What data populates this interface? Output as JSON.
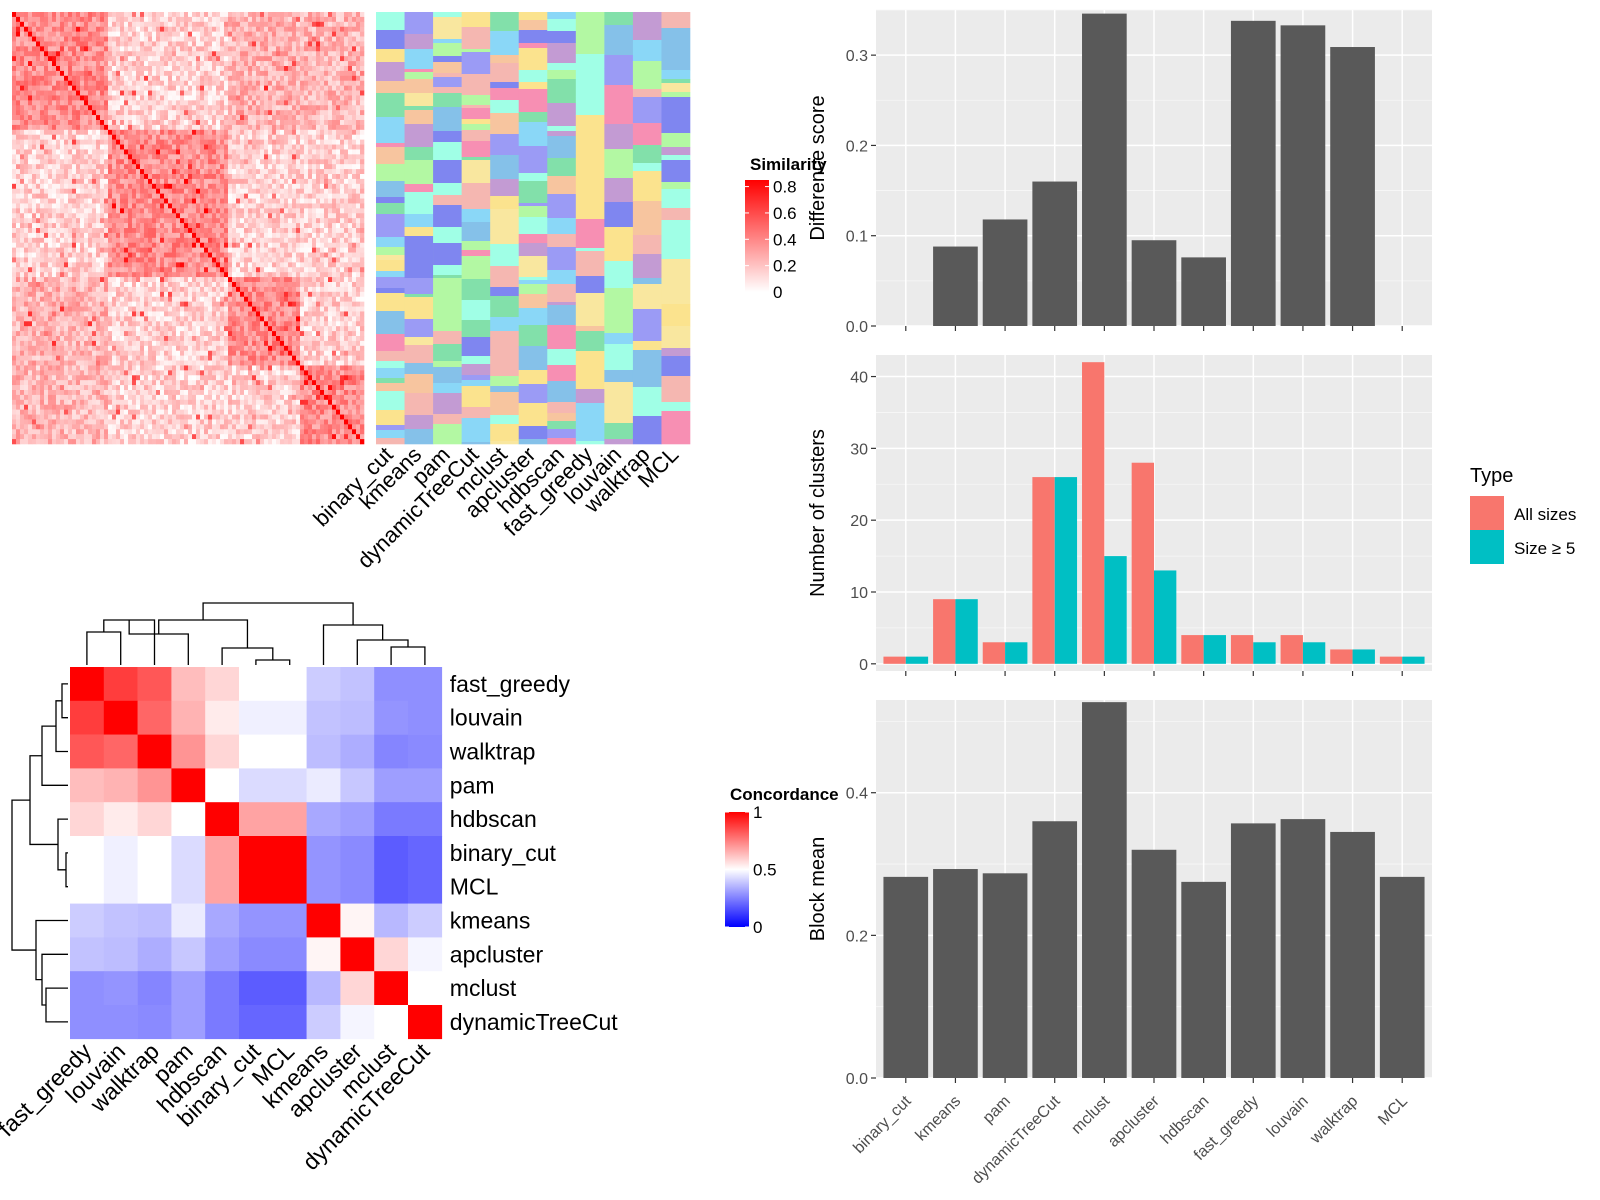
{
  "chart_data": [
    {
      "type": "heatmap",
      "id": "similarity-heatmap",
      "legend": {
        "title": "Similarity",
        "ticks": [
          0,
          0.2,
          0.4,
          0.6,
          0.8
        ],
        "tick_labels": [
          "0",
          "0.2",
          "0.4",
          "0.6",
          "0.8"
        ],
        "low_color": "#ffffff",
        "high_color": "#ff0000"
      },
      "annotation_columns": [
        "binary_cut",
        "kmeans",
        "pam",
        "dynamicTreeCut",
        "mclust",
        "apcluster",
        "hdbscan",
        "fast_greedy",
        "louvain",
        "walktrap",
        "MCL"
      ]
    },
    {
      "type": "heatmap",
      "id": "concordance-heatmap",
      "rows": [
        "fast_greedy",
        "louvain",
        "walktrap",
        "pam",
        "hdbscan",
        "binary_cut",
        "MCL",
        "kmeans",
        "apcluster",
        "mclust",
        "dynamicTreeCut"
      ],
      "columns": [
        "fast_greedy",
        "louvain",
        "walktrap",
        "pam",
        "hdbscan",
        "binary_cut",
        "MCL",
        "kmeans",
        "apcluster",
        "mclust",
        "dynamicTreeCut"
      ],
      "values": [
        [
          1.0,
          0.88,
          0.83,
          0.63,
          0.58,
          0.5,
          0.5,
          0.4,
          0.38,
          0.28,
          0.28
        ],
        [
          0.88,
          1.0,
          0.8,
          0.65,
          0.54,
          0.47,
          0.47,
          0.38,
          0.37,
          0.29,
          0.28
        ],
        [
          0.83,
          0.8,
          1.0,
          0.71,
          0.58,
          0.5,
          0.5,
          0.37,
          0.34,
          0.26,
          0.27
        ],
        [
          0.63,
          0.65,
          0.71,
          1.0,
          0.5,
          0.43,
          0.43,
          0.46,
          0.39,
          0.31,
          0.31
        ],
        [
          0.58,
          0.54,
          0.58,
          0.5,
          1.0,
          0.68,
          0.68,
          0.33,
          0.31,
          0.24,
          0.24
        ],
        [
          0.5,
          0.47,
          0.5,
          0.43,
          0.68,
          1.0,
          1.0,
          0.29,
          0.27,
          0.18,
          0.2
        ],
        [
          0.5,
          0.47,
          0.5,
          0.43,
          0.68,
          1.0,
          1.0,
          0.29,
          0.27,
          0.18,
          0.2
        ],
        [
          0.4,
          0.38,
          0.37,
          0.46,
          0.33,
          0.29,
          0.29,
          1.0,
          0.52,
          0.36,
          0.4
        ],
        [
          0.38,
          0.37,
          0.34,
          0.39,
          0.31,
          0.27,
          0.27,
          0.52,
          1.0,
          0.58,
          0.48
        ],
        [
          0.28,
          0.29,
          0.26,
          0.31,
          0.24,
          0.18,
          0.18,
          0.36,
          0.58,
          1.0,
          0.5
        ],
        [
          0.28,
          0.28,
          0.27,
          0.31,
          0.24,
          0.2,
          0.2,
          0.4,
          0.48,
          0.5,
          1.0
        ]
      ],
      "legend": {
        "title": "Concordance",
        "ticks": [
          0,
          0.5,
          1
        ],
        "tick_labels": [
          "0",
          "0.5",
          "1"
        ],
        "low_color": "#0000ff",
        "mid_color": "#ffffff",
        "high_color": "#ff0000"
      }
    },
    {
      "type": "bar",
      "id": "difference-score",
      "categories": [
        "binary_cut",
        "kmeans",
        "pam",
        "dynamicTreeCut",
        "mclust",
        "apcluster",
        "hdbscan",
        "fast_greedy",
        "louvain",
        "walktrap",
        "MCL"
      ],
      "values": [
        0,
        0.088,
        0.118,
        0.16,
        0.346,
        0.095,
        0.076,
        0.338,
        0.333,
        0.309,
        0
      ],
      "ylabel": "Difference score",
      "ylim": [
        0,
        0.35
      ],
      "yticks": [
        0.0,
        0.1,
        0.2,
        0.3
      ],
      "ytick_labels": [
        "0.0",
        "0.1",
        "0.2",
        "0.3"
      ],
      "grid": true,
      "bar_color": "#595959"
    },
    {
      "type": "bar",
      "id": "number-of-clusters",
      "categories": [
        "binary_cut",
        "kmeans",
        "pam",
        "dynamicTreeCut",
        "mclust",
        "apcluster",
        "hdbscan",
        "fast_greedy",
        "louvain",
        "walktrap",
        "MCL"
      ],
      "series": [
        {
          "name": "All sizes",
          "color": "#f8766d",
          "values": [
            1,
            9,
            3,
            26,
            42,
            28,
            4,
            4,
            4,
            2,
            1
          ]
        },
        {
          "name": "Size ≥ 5",
          "color": "#00bfc4",
          "values": [
            1,
            9,
            3,
            26,
            15,
            13,
            4,
            3,
            3,
            2,
            1
          ]
        }
      ],
      "ylabel": "Number of clusters",
      "ylim": [
        -1,
        43
      ],
      "yticks": [
        0,
        10,
        20,
        30,
        40
      ],
      "ytick_labels": [
        "0",
        "10",
        "20",
        "30",
        "40"
      ],
      "grid": true,
      "legend": {
        "title": "Type",
        "position": "right"
      }
    },
    {
      "type": "bar",
      "id": "block-mean",
      "categories": [
        "binary_cut",
        "kmeans",
        "pam",
        "dynamicTreeCut",
        "mclust",
        "apcluster",
        "hdbscan",
        "fast_greedy",
        "louvain",
        "walktrap",
        "MCL"
      ],
      "values": [
        0.282,
        0.293,
        0.287,
        0.36,
        0.527,
        0.32,
        0.275,
        0.357,
        0.363,
        0.345,
        0.282
      ],
      "ylabel": "Block mean",
      "ylim": [
        0,
        0.53
      ],
      "yticks": [
        0.0,
        0.2,
        0.4
      ],
      "ytick_labels": [
        "0.0",
        "0.2",
        "0.4"
      ],
      "grid": true,
      "bar_color": "#595959"
    }
  ]
}
